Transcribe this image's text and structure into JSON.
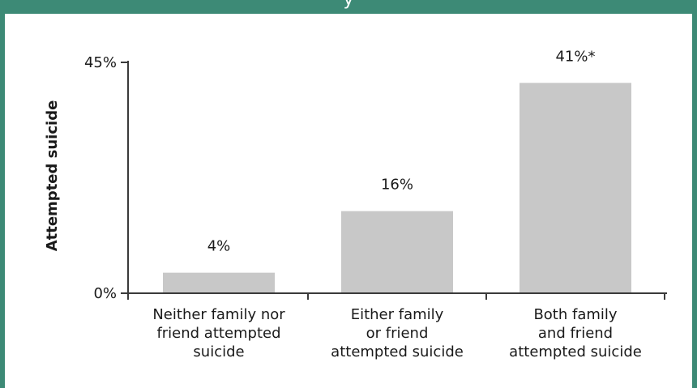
{
  "header": {
    "title": "y",
    "band_color": "#3d8a76"
  },
  "chart_data": {
    "type": "bar",
    "categories": [
      [
        "Neither family nor",
        "friend attempted",
        "suicide"
      ],
      [
        "Either family",
        "or friend",
        "attempted suicide"
      ],
      [
        "Both family",
        "and friend",
        "attempted suicide"
      ]
    ],
    "values": [
      4,
      16,
      41
    ],
    "value_labels": [
      "4%",
      "16%",
      "41%*"
    ],
    "title": "",
    "xlabel": "",
    "ylabel": "Attempted suicide",
    "ylim": [
      0,
      45
    ],
    "y_ticks": [
      {
        "value": 0,
        "label": "0%"
      },
      {
        "value": 45,
        "label": "45%"
      }
    ],
    "grid": false,
    "legend": "none",
    "bar_color": "#c8c8c8",
    "axis_color": "#3a3a3a"
  }
}
